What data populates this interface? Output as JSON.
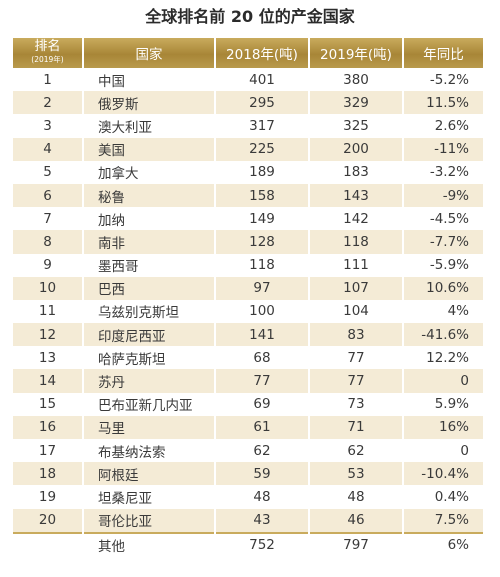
{
  "title": "全球排名前 20 位的产金国家",
  "header": {
    "rank": "排名",
    "rank_sub": "(2019年)",
    "country": "国家",
    "y2018": "2018年(吨)",
    "y2019": "2019年(吨)",
    "yoy": "年同比"
  },
  "rows": [
    {
      "rank": "1",
      "country": "中国",
      "y2018": "401",
      "y2019": "380",
      "yoy": "-5.2%"
    },
    {
      "rank": "2",
      "country": "俄罗斯",
      "y2018": "295",
      "y2019": "329",
      "yoy": "11.5%"
    },
    {
      "rank": "3",
      "country": "澳大利亚",
      "y2018": "317",
      "y2019": "325",
      "yoy": "2.6%"
    },
    {
      "rank": "4",
      "country": "美国",
      "y2018": "225",
      "y2019": "200",
      "yoy": "-11%"
    },
    {
      "rank": "5",
      "country": "加拿大",
      "y2018": "189",
      "y2019": "183",
      "yoy": "-3.2%"
    },
    {
      "rank": "6",
      "country": "秘鲁",
      "y2018": "158",
      "y2019": "143",
      "yoy": "-9%"
    },
    {
      "rank": "7",
      "country": "加纳",
      "y2018": "149",
      "y2019": "142",
      "yoy": "-4.5%"
    },
    {
      "rank": "8",
      "country": "南非",
      "y2018": "128",
      "y2019": "118",
      "yoy": "-7.7%"
    },
    {
      "rank": "9",
      "country": "墨西哥",
      "y2018": "118",
      "y2019": "111",
      "yoy": "-5.9%"
    },
    {
      "rank": "10",
      "country": "巴西",
      "y2018": "97",
      "y2019": "107",
      "yoy": "10.6%"
    },
    {
      "rank": "11",
      "country": "乌兹别克斯坦",
      "y2018": "100",
      "y2019": "104",
      "yoy": "4%"
    },
    {
      "rank": "12",
      "country": "印度尼西亚",
      "y2018": "141",
      "y2019": "83",
      "yoy": "-41.6%"
    },
    {
      "rank": "13",
      "country": "哈萨克斯坦",
      "y2018": "68",
      "y2019": "77",
      "yoy": "12.2%"
    },
    {
      "rank": "14",
      "country": "苏丹",
      "y2018": "77",
      "y2019": "77",
      "yoy": "0"
    },
    {
      "rank": "15",
      "country": "巴布亚新几内亚",
      "y2018": "69",
      "y2019": "73",
      "yoy": "5.9%"
    },
    {
      "rank": "16",
      "country": "马里",
      "y2018": "61",
      "y2019": "71",
      "yoy": "16%"
    },
    {
      "rank": "17",
      "country": "布基纳法索",
      "y2018": "62",
      "y2019": "62",
      "yoy": "0"
    },
    {
      "rank": "18",
      "country": "阿根廷",
      "y2018": "59",
      "y2019": "53",
      "yoy": "-10.4%"
    },
    {
      "rank": "19",
      "country": "坦桑尼亚",
      "y2018": "48",
      "y2019": "48",
      "yoy": "0.4%"
    },
    {
      "rank": "20",
      "country": "哥伦比亚",
      "y2018": "43",
      "y2019": "46",
      "yoy": "7.5%"
    }
  ],
  "total": {
    "rank": "",
    "country": "其他",
    "y2018": "752",
    "y2019": "797",
    "yoy": "6%"
  },
  "colors": {
    "header_gold": "#b08f41",
    "stripe": "#f4ebd6"
  }
}
